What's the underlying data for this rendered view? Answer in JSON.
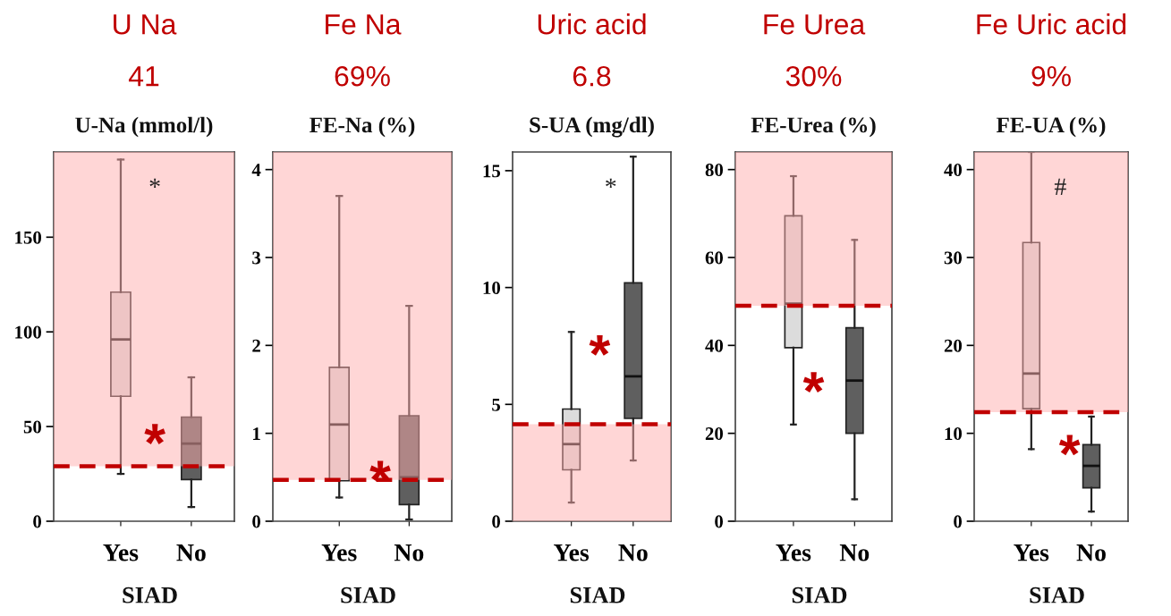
{
  "chart_data": [
    {
      "type": "box",
      "title": "U Na",
      "subtitle": "41",
      "ylabel": "U-Na (mmol/l)",
      "xlabel": "SIAD",
      "categories": [
        "Yes",
        "No"
      ],
      "colors": [
        "#dcdcdc",
        "#5f5f5f"
      ],
      "boxes": [
        {
          "low": 25,
          "q1": 66,
          "median": 96,
          "q3": 121,
          "high": 191
        },
        {
          "low": 7.5,
          "q1": 22,
          "median": 41,
          "q3": 55,
          "high": 76
        }
      ],
      "ylim": [
        0,
        195
      ],
      "yticks": [
        0,
        50,
        100,
        150
      ],
      "grid": false,
      "ref_lines": [
        {
          "axis": "y",
          "value": 29,
          "color": "#c00000",
          "line_style": "dashed"
        }
      ],
      "bands": [
        {
          "axis": "y",
          "from": 29,
          "to": 195,
          "color": "#ffadad"
        }
      ],
      "annotations": [
        "*",
        "*"
      ]
    },
    {
      "type": "box",
      "title": "Fe Na",
      "subtitle": "69%",
      "ylabel": "FE-Na (%)",
      "xlabel": "SIAD",
      "categories": [
        "Yes",
        "No"
      ],
      "colors": [
        "#dcdcdc",
        "#5f5f5f"
      ],
      "boxes": [
        {
          "low": 0.27,
          "q1": 0.46,
          "median": 1.1,
          "q3": 1.75,
          "high": 3.7
        },
        {
          "low": 0.02,
          "q1": 0.19,
          "median": 0.5,
          "q3": 1.2,
          "high": 2.45
        }
      ],
      "ylim": [
        0,
        4.2
      ],
      "yticks": [
        0,
        1,
        2,
        3,
        4
      ],
      "grid": false,
      "ref_lines": [
        {
          "axis": "y",
          "value": 0.47,
          "color": "#c00000",
          "line_style": "dashed"
        }
      ],
      "bands": [
        {
          "axis": "y",
          "from": 0.47,
          "to": 4.2,
          "color": "#ffadad"
        }
      ],
      "annotations": [
        "*"
      ]
    },
    {
      "type": "box",
      "title": "Uric acid",
      "subtitle": "6.8",
      "ylabel": "S-UA (mg/dl)",
      "xlabel": "SIAD",
      "categories": [
        "Yes",
        "No"
      ],
      "colors": [
        "#dcdcdc",
        "#5f5f5f"
      ],
      "boxes": [
        {
          "low": 0.8,
          "q1": 2.2,
          "median": 3.3,
          "q3": 4.8,
          "high": 8.1
        },
        {
          "low": 2.6,
          "q1": 4.4,
          "median": 6.2,
          "q3": 10.2,
          "high": 15.6
        }
      ],
      "ylim": [
        0,
        15.8
      ],
      "yticks": [
        0,
        5,
        10,
        15
      ],
      "grid": false,
      "ref_lines": [
        {
          "axis": "y",
          "value": 4.15,
          "color": "#c00000",
          "line_style": "dashed"
        }
      ],
      "bands": [
        {
          "axis": "y",
          "from": 0,
          "to": 4.15,
          "color": "#ffadad"
        }
      ],
      "annotations": [
        "*",
        "*"
      ]
    },
    {
      "type": "box",
      "title": "Fe Urea",
      "subtitle": "30%",
      "ylabel": "FE-Urea (%)",
      "xlabel": "SIAD",
      "categories": [
        "Yes",
        "No"
      ],
      "colors": [
        "#dcdcdc",
        "#5f5f5f"
      ],
      "boxes": [
        {
          "low": 22,
          "q1": 39.5,
          "median": 49.5,
          "q3": 69.5,
          "high": 78.5
        },
        {
          "low": 5,
          "q1": 20,
          "median": 32,
          "q3": 44,
          "high": 64
        }
      ],
      "ylim": [
        0,
        84
      ],
      "yticks": [
        0,
        20,
        40,
        60,
        80
      ],
      "grid": false,
      "ref_lines": [
        {
          "axis": "y",
          "value": 49,
          "color": "#c00000",
          "line_style": "dashed"
        }
      ],
      "bands": [
        {
          "axis": "y",
          "from": 49,
          "to": 84,
          "color": "#ffadad"
        }
      ],
      "annotations": [
        "*"
      ]
    },
    {
      "type": "box",
      "title": "Fe Uric acid",
      "subtitle": "9%",
      "ylabel": "FE-UA (%)",
      "xlabel": "SIAD",
      "categories": [
        "Yes",
        "No"
      ],
      "colors": [
        "#dcdcdc",
        "#5f5f5f"
      ],
      "boxes": [
        {
          "low": 8.2,
          "q1": 12.8,
          "median": 16.8,
          "q3": 31.7,
          "high": 42
        },
        {
          "low": 1.1,
          "q1": 3.8,
          "median": 6.3,
          "q3": 8.7,
          "high": 11.9
        }
      ],
      "ylim": [
        0,
        42
      ],
      "yticks": [
        0,
        10,
        20,
        30,
        40
      ],
      "grid": false,
      "ref_lines": [
        {
          "axis": "y",
          "value": 12.4,
          "color": "#c00000",
          "line_style": "dashed"
        }
      ],
      "bands": [
        {
          "axis": "y",
          "from": 12.4,
          "to": 42,
          "color": "#ffadad"
        }
      ],
      "annotations": [
        "#",
        "*"
      ]
    }
  ]
}
